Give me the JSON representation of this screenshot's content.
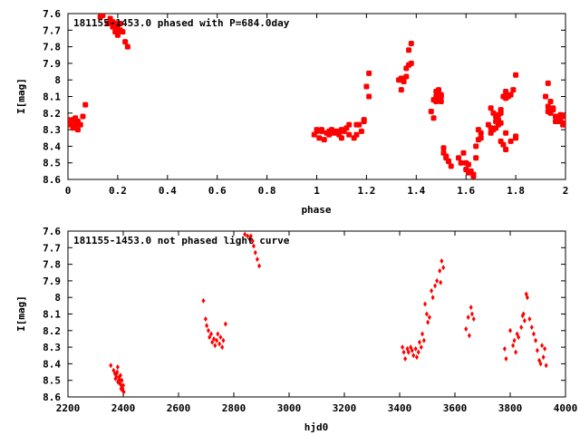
{
  "chart_data": [
    {
      "type": "scatter",
      "title": "181155-1453.0 phased with P=684.0day",
      "xlabel": "phase",
      "ylabel": "I[mag]",
      "xlim": [
        0,
        2
      ],
      "ylim": [
        7.6,
        8.6
      ],
      "y_inverted": true,
      "x_ticks": [
        "0",
        "0.2",
        "0.4",
        "0.6",
        "0.8",
        "1",
        "1.2",
        "1.4",
        "1.6",
        "1.8",
        "2"
      ],
      "y_ticks": [
        "7.6",
        "7.7",
        "7.8",
        "7.9",
        "8",
        "8.1",
        "8.2",
        "8.3",
        "8.4",
        "8.5",
        "8.6"
      ],
      "marker_color": "#ff0000",
      "grid": false,
      "x": [
        0.0,
        0.01,
        0.02,
        0.02,
        0.03,
        0.03,
        0.04,
        0.04,
        0.05,
        0.06,
        0.07,
        0.13,
        0.14,
        0.16,
        0.17,
        0.18,
        0.18,
        0.19,
        0.19,
        0.2,
        0.2,
        0.21,
        0.21,
        0.22,
        0.23,
        0.24,
        0.99,
        1.0,
        1.0,
        1.01,
        1.02,
        1.02,
        1.03,
        1.04,
        1.05,
        1.05,
        1.06,
        1.07,
        1.08,
        1.09,
        1.1,
        1.1,
        1.11,
        1.12,
        1.13,
        1.13,
        1.15,
        1.16,
        1.16,
        1.17,
        1.18,
        1.19,
        1.19,
        1.2,
        1.21,
        1.21,
        1.33,
        1.34,
        1.34,
        1.35,
        1.36,
        1.36,
        1.37,
        1.37,
        1.38,
        1.38,
        1.46,
        1.47,
        1.47,
        1.48,
        1.48,
        1.48,
        1.49,
        1.49,
        1.5,
        1.5,
        1.5,
        1.51,
        1.51,
        1.52,
        1.52,
        1.53,
        1.53,
        1.54,
        1.57,
        1.58,
        1.59,
        1.6,
        1.6,
        1.61,
        1.61,
        1.62,
        1.63,
        1.63,
        1.64,
        1.64,
        1.65,
        1.65,
        1.66,
        1.66,
        1.69,
        1.7,
        1.7,
        1.71,
        1.72,
        1.72,
        1.73,
        1.73,
        1.74,
        1.74,
        1.75,
        1.76,
        1.76,
        1.77,
        1.78,
        1.79,
        1.8,
        1.92,
        1.93,
        1.93,
        1.94,
        1.95,
        1.96,
        1.97,
        1.98,
        1.99,
        2.0
      ],
      "y": [
        8.24,
        8.27,
        8.24,
        8.29,
        8.27,
        8.23,
        8.3,
        8.25,
        8.27,
        8.22,
        8.15,
        7.62,
        7.61,
        7.66,
        7.63,
        7.65,
        7.68,
        7.71,
        7.66,
        7.69,
        7.73,
        7.66,
        7.7,
        7.71,
        7.77,
        7.8,
        8.33,
        8.31,
        8.3,
        8.35,
        8.31,
        8.3,
        8.36,
        8.32,
        8.31,
        8.33,
        8.3,
        8.32,
        8.31,
        8.33,
        8.3,
        8.35,
        8.31,
        8.29,
        8.33,
        8.27,
        8.35,
        8.33,
        8.27,
        8.27,
        8.31,
        8.25,
        8.24,
        8.04,
        8.1,
        7.96,
        8.0,
        8.06,
        7.99,
        8.01,
        7.93,
        7.98,
        7.82,
        7.91,
        7.9,
        7.78,
        8.19,
        8.12,
        8.23,
        8.1,
        8.07,
        8.13,
        8.06,
        8.1,
        8.1,
        8.09,
        8.13,
        8.41,
        8.44,
        8.47,
        8.46,
        8.49,
        8.49,
        8.52,
        8.47,
        8.5,
        8.44,
        8.5,
        8.54,
        8.51,
        8.56,
        8.55,
        8.57,
        8.58,
        8.47,
        8.4,
        8.36,
        8.3,
        8.32,
        8.35,
        8.27,
        8.29,
        8.32,
        8.3,
        8.25,
        8.29,
        8.21,
        8.24,
        8.2,
        8.18,
        8.1,
        8.11,
        8.07,
        8.1,
        8.09,
        8.06,
        7.97,
        8.1,
        8.16,
        8.19,
        8.2,
        8.18,
        8.22,
        8.25,
        8.24,
        8.27,
        8.22
      ],
      "x_extra": [
        1.7,
        1.71,
        1.72,
        1.73,
        1.73,
        1.74,
        1.74,
        1.75,
        1.76,
        1.76,
        1.78,
        1.8,
        1.8,
        1.93,
        1.94,
        1.95,
        1.96,
        1.98,
        1.99,
        2.0
      ],
      "y_extra": [
        8.17,
        8.2,
        8.22,
        8.25,
        8.27,
        8.26,
        8.37,
        8.39,
        8.32,
        8.42,
        8.37,
        8.34,
        8.35,
        8.02,
        8.13,
        8.17,
        8.25,
        8.21,
        8.27,
        8.26
      ]
    },
    {
      "type": "scatter",
      "title": "181155-1453.0 not phased light curve",
      "xlabel": "hjd0",
      "ylabel": "I[mag]",
      "xlim": [
        2200,
        4000
      ],
      "ylim": [
        7.6,
        8.6
      ],
      "y_inverted": true,
      "x_ticks": [
        "2200",
        "2400",
        "2600",
        "2800",
        "3000",
        "3200",
        "3400",
        "3600",
        "3800",
        "4000"
      ],
      "y_ticks": [
        "7.6",
        "7.7",
        "7.8",
        "7.9",
        "8",
        "8.1",
        "8.2",
        "8.3",
        "8.4",
        "8.5",
        "8.6"
      ],
      "marker_color": "#ff0000",
      "grid": false,
      "x": [
        2355,
        2365,
        2370,
        2375,
        2378,
        2380,
        2383,
        2386,
        2388,
        2390,
        2392,
        2395,
        2397,
        2400,
        2402,
        2372,
        2376,
        2381,
        2385,
        2389,
        2393,
        2398,
        2690,
        2698,
        2702,
        2708,
        2712,
        2718,
        2722,
        2728,
        2732,
        2738,
        2742,
        2748,
        2752,
        2758,
        2762,
        2770,
        2840,
        2850,
        2858,
        2862,
        2868,
        2872,
        2878,
        2885,
        2892,
        3410,
        3415,
        3420,
        3428,
        3432,
        3440,
        3445,
        3450,
        3458,
        3462,
        3468,
        3472,
        3478,
        3482,
        3488,
        3492,
        3498,
        3502,
        3508,
        3515,
        3520,
        3528,
        3535,
        3545,
        3548,
        3552,
        3558,
        3640,
        3648,
        3652,
        3658,
        3662,
        3668,
        3780,
        3785,
        3800,
        3810,
        3815,
        3820,
        3825,
        3830,
        3840,
        3845,
        3848,
        3852,
        3858,
        3862,
        3870,
        3878,
        3885,
        3892,
        3898,
        3905,
        3910,
        3915,
        3920,
        3925,
        3930
      ],
      "y": [
        8.41,
        8.44,
        8.46,
        8.48,
        8.45,
        8.42,
        8.5,
        8.48,
        8.52,
        8.47,
        8.55,
        8.5,
        8.56,
        8.53,
        8.57,
        8.49,
        8.46,
        8.51,
        8.48,
        8.5,
        8.53,
        8.55,
        8.02,
        8.13,
        8.17,
        8.2,
        8.24,
        8.22,
        8.27,
        8.25,
        8.29,
        8.26,
        8.22,
        8.28,
        8.24,
        8.3,
        8.26,
        8.16,
        7.62,
        7.63,
        7.65,
        7.63,
        7.66,
        7.69,
        7.73,
        7.77,
        7.81,
        8.3,
        8.33,
        8.37,
        8.31,
        8.33,
        8.3,
        8.32,
        8.35,
        8.31,
        8.36,
        8.33,
        8.27,
        8.3,
        8.22,
        8.26,
        8.04,
        8.1,
        8.15,
        8.12,
        7.96,
        8.0,
        7.93,
        7.9,
        7.84,
        7.91,
        7.78,
        7.82,
        8.19,
        8.12,
        8.23,
        8.06,
        8.1,
        8.13,
        8.31,
        8.37,
        8.2,
        8.29,
        8.26,
        8.33,
        8.22,
        8.24,
        8.18,
        8.11,
        8.1,
        8.14,
        7.98,
        8.0,
        8.13,
        8.18,
        8.22,
        8.26,
        8.32,
        8.38,
        8.4,
        8.29,
        8.36,
        8.31,
        8.41
      ]
    }
  ]
}
